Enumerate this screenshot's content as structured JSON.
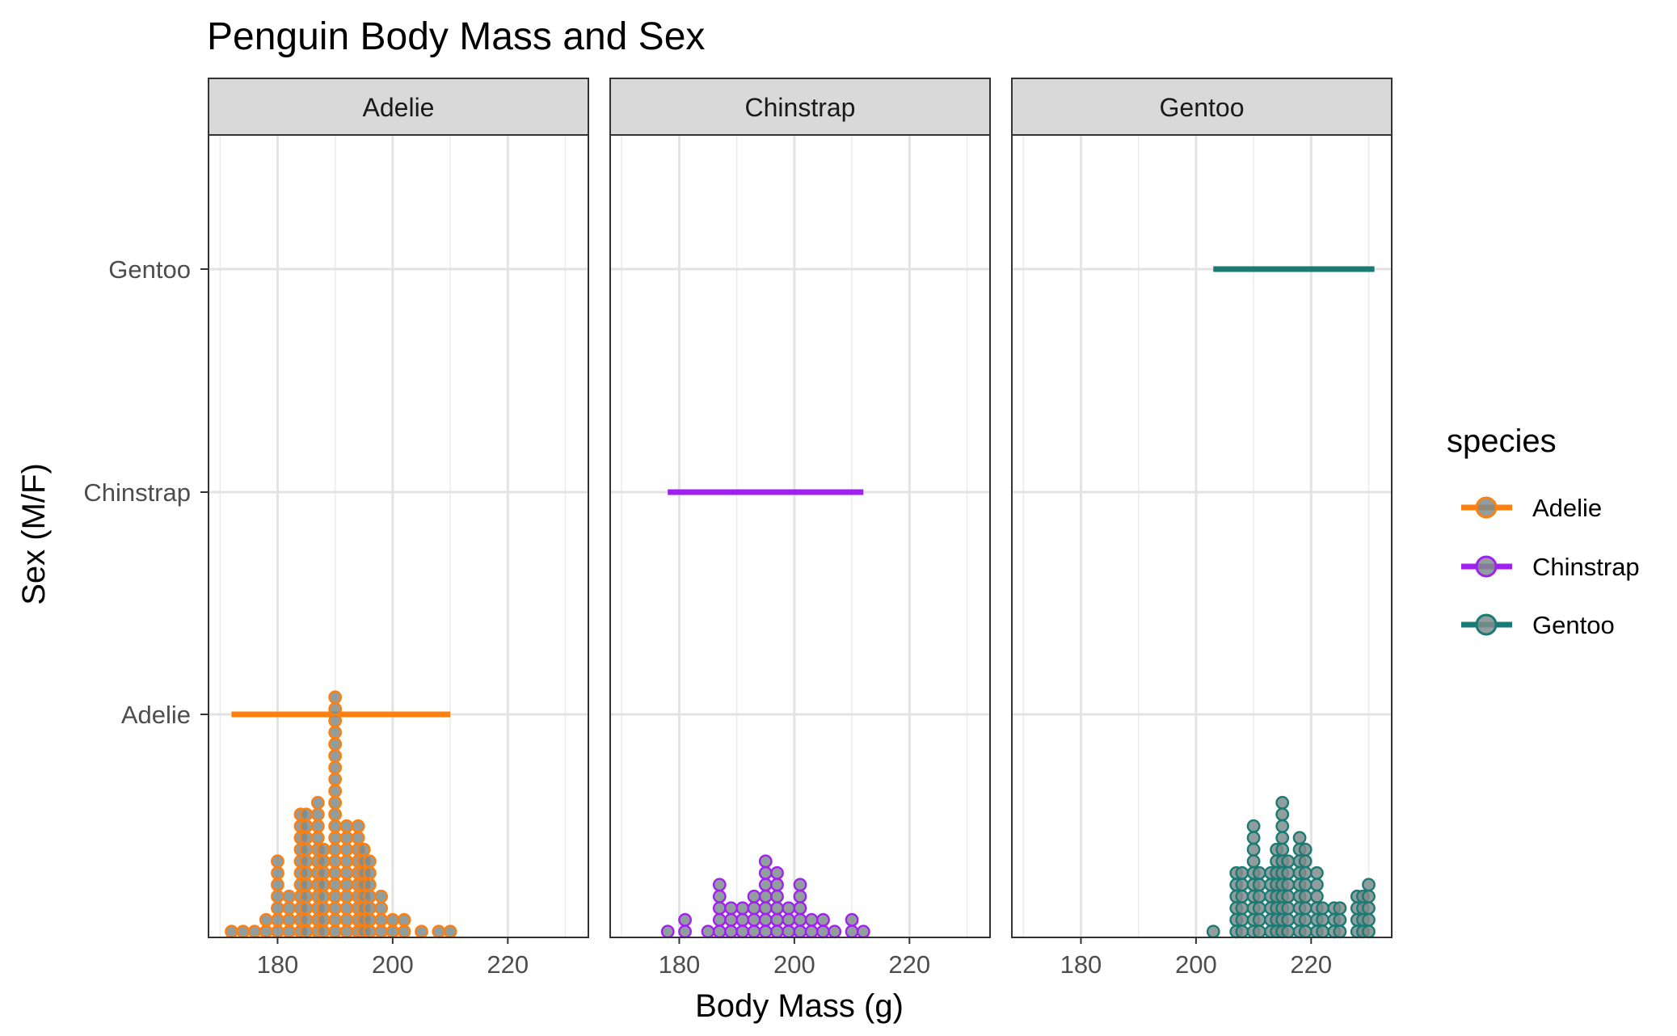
{
  "chart_data": {
    "type": "dotplot",
    "title": "Penguin Body Mass and Sex",
    "xlabel": "Body Mass (g)",
    "ylabel": "Sex (M/F)",
    "xlim": [
      168,
      234
    ],
    "x_ticks": [
      180,
      200,
      220
    ],
    "y_categories": [
      "Adelie",
      "Chinstrap",
      "Gentoo"
    ],
    "legend": {
      "title": "species",
      "position": "right"
    },
    "grid": true,
    "panels": [
      {
        "name": "Adelie",
        "color": "#FF7F0E",
        "range": [
          172,
          210
        ],
        "range_y": "Adelie",
        "dots": [
          {
            "x": 172,
            "count": 1
          },
          {
            "x": 174,
            "count": 1
          },
          {
            "x": 176,
            "count": 1
          },
          {
            "x": 178,
            "count": 2
          },
          {
            "x": 180,
            "count": 7
          },
          {
            "x": 182,
            "count": 4
          },
          {
            "x": 184,
            "count": 11
          },
          {
            "x": 185,
            "count": 11
          },
          {
            "x": 187,
            "count": 12
          },
          {
            "x": 188,
            "count": 8
          },
          {
            "x": 190,
            "count": 21
          },
          {
            "x": 192,
            "count": 10
          },
          {
            "x": 194,
            "count": 10
          },
          {
            "x": 195,
            "count": 8
          },
          {
            "x": 196,
            "count": 7
          },
          {
            "x": 198,
            "count": 4
          },
          {
            "x": 200,
            "count": 2
          },
          {
            "x": 202,
            "count": 2
          },
          {
            "x": 205,
            "count": 1
          },
          {
            "x": 208,
            "count": 1
          },
          {
            "x": 210,
            "count": 1
          }
        ]
      },
      {
        "name": "Chinstrap",
        "color": "#A020F0",
        "range": [
          178,
          212
        ],
        "range_y": "Chinstrap",
        "dots": [
          {
            "x": 178,
            "count": 1
          },
          {
            "x": 181,
            "count": 2
          },
          {
            "x": 185,
            "count": 1
          },
          {
            "x": 187,
            "count": 5
          },
          {
            "x": 189,
            "count": 3
          },
          {
            "x": 191,
            "count": 3
          },
          {
            "x": 193,
            "count": 4
          },
          {
            "x": 195,
            "count": 7
          },
          {
            "x": 197,
            "count": 6
          },
          {
            "x": 199,
            "count": 3
          },
          {
            "x": 201,
            "count": 5
          },
          {
            "x": 203,
            "count": 2
          },
          {
            "x": 205,
            "count": 2
          },
          {
            "x": 207,
            "count": 1
          },
          {
            "x": 210,
            "count": 2
          },
          {
            "x": 212,
            "count": 1
          }
        ]
      },
      {
        "name": "Gentoo",
        "color": "#1A7A74",
        "range": [
          203,
          231
        ],
        "range_y": "Gentoo",
        "dots": [
          {
            "x": 203,
            "count": 1
          },
          {
            "x": 207,
            "count": 6
          },
          {
            "x": 208,
            "count": 6
          },
          {
            "x": 210,
            "count": 10
          },
          {
            "x": 211,
            "count": 6
          },
          {
            "x": 213,
            "count": 6
          },
          {
            "x": 214,
            "count": 8
          },
          {
            "x": 215,
            "count": 12
          },
          {
            "x": 216,
            "count": 7
          },
          {
            "x": 218,
            "count": 9
          },
          {
            "x": 219,
            "count": 8
          },
          {
            "x": 221,
            "count": 6
          },
          {
            "x": 222,
            "count": 3
          },
          {
            "x": 224,
            "count": 3
          },
          {
            "x": 225,
            "count": 3
          },
          {
            "x": 228,
            "count": 4
          },
          {
            "x": 229,
            "count": 4
          },
          {
            "x": 230,
            "count": 5
          }
        ]
      }
    ]
  }
}
